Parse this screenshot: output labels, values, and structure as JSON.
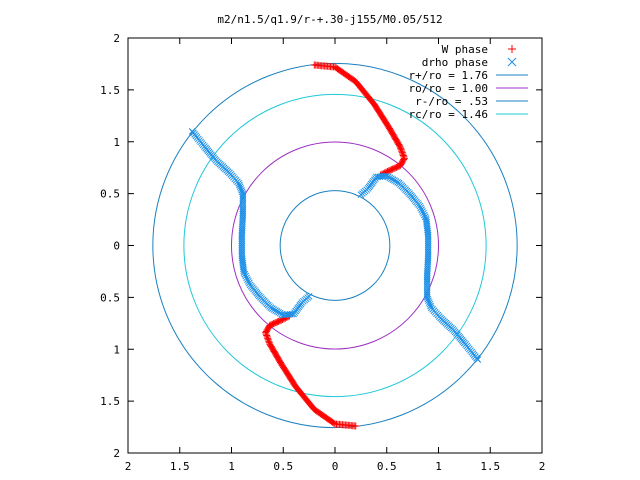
{
  "chart_data": {
    "type": "scatter",
    "title": "m2/n1.5/q1.9/r-+.30-j155/M0.05/512",
    "xlabel": "",
    "ylabel": "",
    "xlim": [
      -2,
      2
    ],
    "ylim": [
      -2,
      2
    ],
    "x_ticks": [
      -2,
      -1.5,
      -1,
      -0.5,
      0,
      0.5,
      1,
      1.5,
      2
    ],
    "y_ticks": [
      -2,
      -1.5,
      -1,
      -0.5,
      0,
      0.5,
      1,
      1.5,
      2
    ],
    "x_tick_labels": [
      "2",
      "1.5",
      "1",
      "0.5",
      "0",
      "0.5",
      "1",
      "1.5",
      "2"
    ],
    "y_tick_labels": [
      "2",
      "1.5",
      "1",
      "0.5",
      "0",
      "0.5",
      "1",
      "1.5",
      "2"
    ],
    "grid": false,
    "legend_position": "top-right",
    "series": [
      {
        "name": "W phase",
        "marker": "plus",
        "color": "#ff0000",
        "arms": [
          [
            [
              -0.2,
              1.74
            ],
            [
              0.0,
              1.72
            ],
            [
              0.2,
              1.58
            ],
            [
              0.38,
              1.36
            ],
            [
              0.52,
              1.14
            ],
            [
              0.63,
              0.95
            ],
            [
              0.67,
              0.84
            ],
            [
              0.63,
              0.77
            ],
            [
              0.52,
              0.72
            ],
            [
              0.44,
              0.68
            ]
          ],
          [
            [
              0.2,
              -1.74
            ],
            [
              0.0,
              -1.72
            ],
            [
              -0.2,
              -1.58
            ],
            [
              -0.38,
              -1.36
            ],
            [
              -0.52,
              -1.14
            ],
            [
              -0.63,
              -0.95
            ],
            [
              -0.67,
              -0.84
            ],
            [
              -0.63,
              -0.77
            ],
            [
              -0.52,
              -0.72
            ],
            [
              -0.44,
              -0.68
            ]
          ]
        ]
      },
      {
        "name": "drho phase",
        "marker": "cross",
        "color": "#1e90e8",
        "arms": [
          [
            [
              -1.38,
              1.1
            ],
            [
              -1.25,
              0.94
            ],
            [
              -1.15,
              0.82
            ],
            [
              -1.02,
              0.7
            ],
            [
              -0.93,
              0.6
            ],
            [
              -0.89,
              0.5
            ],
            [
              -0.89,
              0.3
            ],
            [
              -0.9,
              0.1
            ],
            [
              -0.9,
              -0.1
            ],
            [
              -0.88,
              -0.26
            ],
            [
              -0.82,
              -0.38
            ],
            [
              -0.72,
              -0.5
            ],
            [
              -0.62,
              -0.6
            ],
            [
              -0.5,
              -0.67
            ],
            [
              -0.4,
              -0.66
            ],
            [
              -0.32,
              -0.55
            ],
            [
              -0.25,
              -0.49
            ]
          ],
          [
            [
              1.38,
              -1.1
            ],
            [
              1.25,
              -0.94
            ],
            [
              1.15,
              -0.82
            ],
            [
              1.02,
              -0.7
            ],
            [
              0.93,
              -0.6
            ],
            [
              0.89,
              -0.5
            ],
            [
              0.89,
              -0.3
            ],
            [
              0.9,
              -0.1
            ],
            [
              0.9,
              0.1
            ],
            [
              0.88,
              0.26
            ],
            [
              0.82,
              0.38
            ],
            [
              0.72,
              0.5
            ],
            [
              0.62,
              0.6
            ],
            [
              0.5,
              0.67
            ],
            [
              0.4,
              0.66
            ],
            [
              0.32,
              0.55
            ],
            [
              0.25,
              0.49
            ]
          ]
        ]
      },
      {
        "name": "r+/ro = 1.76",
        "type": "circle",
        "radius": 1.76,
        "color": "#1a80c0"
      },
      {
        "name": "ro/ro = 1.00",
        "type": "circle",
        "radius": 1.0,
        "color": "#9b30c0"
      },
      {
        "name": "r-/ro = .53",
        "type": "circle",
        "radius": 0.53,
        "color": "#1a80c0"
      },
      {
        "name": "rc/ro = 1.46",
        "type": "circle",
        "radius": 1.46,
        "color": "#20c8d8"
      }
    ]
  }
}
